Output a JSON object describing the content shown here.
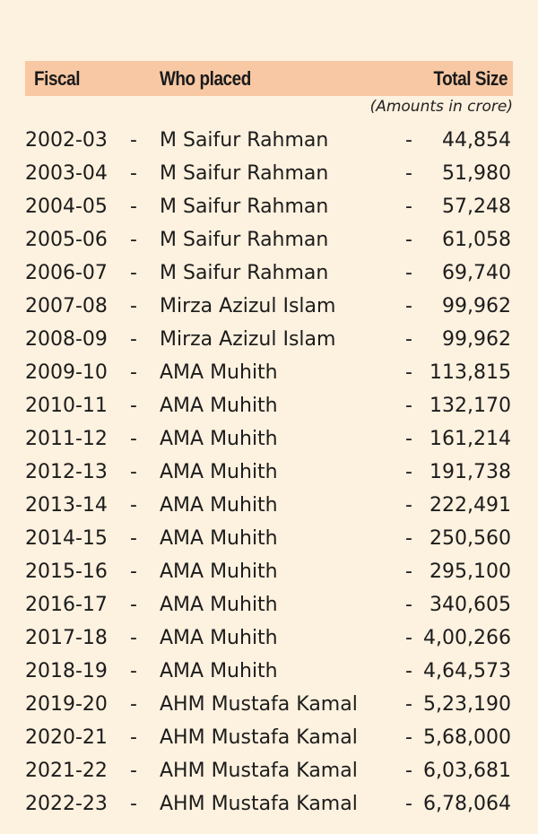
{
  "header": {
    "fiscal": "Fiscal",
    "who": "Who placed",
    "size": "Total Size"
  },
  "note": "(Amounts in crore)",
  "separator": "-",
  "rows": [
    {
      "fiscal": "2002-03",
      "who": "M Saifur Rahman",
      "amount": "44,854"
    },
    {
      "fiscal": "2003-04",
      "who": "M Saifur Rahman",
      "amount": "51,980"
    },
    {
      "fiscal": "2004-05",
      "who": "M Saifur Rahman",
      "amount": "57,248"
    },
    {
      "fiscal": "2005-06",
      "who": "M Saifur Rahman",
      "amount": "61,058"
    },
    {
      "fiscal": "2006-07",
      "who": "M Saifur Rahman",
      "amount": "69,740"
    },
    {
      "fiscal": "2007-08",
      "who": "Mirza Azizul Islam",
      "amount": "99,962"
    },
    {
      "fiscal": "2008-09",
      "who": "Mirza Azizul Islam",
      "amount": "99,962"
    },
    {
      "fiscal": "2009-10",
      "who": "AMA Muhith",
      "amount": "113,815"
    },
    {
      "fiscal": "2010-11",
      "who": "AMA Muhith",
      "amount": "132,170"
    },
    {
      "fiscal": "2011-12",
      "who": "AMA Muhith",
      "amount": "161,214"
    },
    {
      "fiscal": "2012-13",
      "who": "AMA Muhith",
      "amount": "191,738"
    },
    {
      "fiscal": "2013-14",
      "who": "AMA Muhith",
      "amount": "222,491"
    },
    {
      "fiscal": "2014-15",
      "who": "AMA Muhith",
      "amount": "250,560"
    },
    {
      "fiscal": "2015-16",
      "who": "AMA Muhith",
      "amount": "295,100"
    },
    {
      "fiscal": "2016-17",
      "who": "AMA Muhith",
      "amount": "340,605"
    },
    {
      "fiscal": "2017-18",
      "who": "AMA Muhith",
      "amount": "4,00,266"
    },
    {
      "fiscal": "2018-19",
      "who": "AMA Muhith",
      "amount": "4,64,573"
    },
    {
      "fiscal": "2019-20",
      "who": "AHM Mustafa Kamal",
      "amount": "5,23,190"
    },
    {
      "fiscal": "2020-21",
      "who": "AHM Mustafa Kamal",
      "amount": "5,68,000"
    },
    {
      "fiscal": "2021-22",
      "who": "AHM Mustafa Kamal",
      "amount": "6,03,681"
    },
    {
      "fiscal": "2022-23",
      "who": "AHM Mustafa Kamal",
      "amount": "6,78,064"
    }
  ]
}
